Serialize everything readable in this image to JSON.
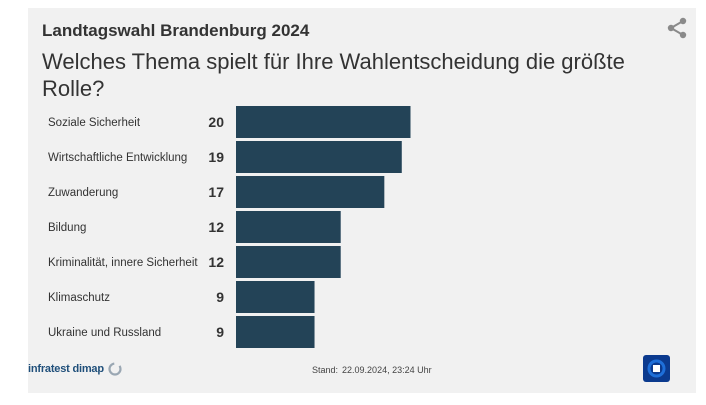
{
  "header": {
    "kicker": "Landtagswahl Brandenburg 2024",
    "question": "Welches Thema spielt für Ihre Wahlentscheidung die größte Rolle?"
  },
  "footer": {
    "source": "infratest dimap",
    "stand_label": "Stand:",
    "stand_value": "22.09.2024, 23:24 Uhr"
  },
  "colors": {
    "bar": "#234357",
    "background": "#f1f1f1"
  },
  "icons": {
    "share": "share-icon",
    "logo": "tagesschau-logo"
  },
  "chart_data": {
    "type": "bar",
    "orientation": "horizontal",
    "categories": [
      "Soziale Sicherheit",
      "Wirtschaftliche Entwicklung",
      "Zuwanderung",
      "Bildung",
      "Kriminalität, innere Sicherheit",
      "Klimaschutz",
      "Ukraine und Russland"
    ],
    "values": [
      20,
      19,
      17,
      12,
      12,
      9,
      9
    ],
    "title": "Welches Thema spielt für Ihre Wahlentscheidung die größte Rolle?",
    "xlabel": "",
    "ylabel": "",
    "xlim": [
      0,
      40
    ],
    "grid": false,
    "legend": "none"
  }
}
